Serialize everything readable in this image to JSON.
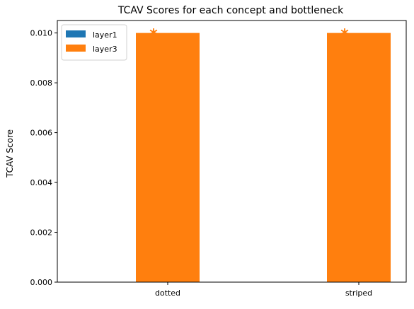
{
  "chart_data": {
    "type": "bar",
    "title": "TCAV Scores for each concept and bottleneck",
    "xlabel": "",
    "ylabel": "TCAV Score",
    "categories": [
      "dotted",
      "striped"
    ],
    "series": [
      {
        "name": "layer1",
        "color": "#1f77b4",
        "values": [
          0.0,
          0.0
        ]
      },
      {
        "name": "layer3",
        "color": "#ff7f0e",
        "values": [
          0.01,
          0.01
        ]
      }
    ],
    "annotations": [
      {
        "category": "dotted",
        "series": "layer3",
        "text": "*"
      },
      {
        "category": "striped",
        "series": "layer3",
        "text": "*"
      }
    ],
    "ylim": [
      0,
      0.0105
    ],
    "yticks": [
      0.0,
      0.002,
      0.004,
      0.006,
      0.008,
      0.01
    ],
    "ytick_labels": [
      "0.000",
      "0.002",
      "0.004",
      "0.006",
      "0.008",
      "0.010"
    ],
    "grid": false,
    "legend_position": "top-left"
  }
}
